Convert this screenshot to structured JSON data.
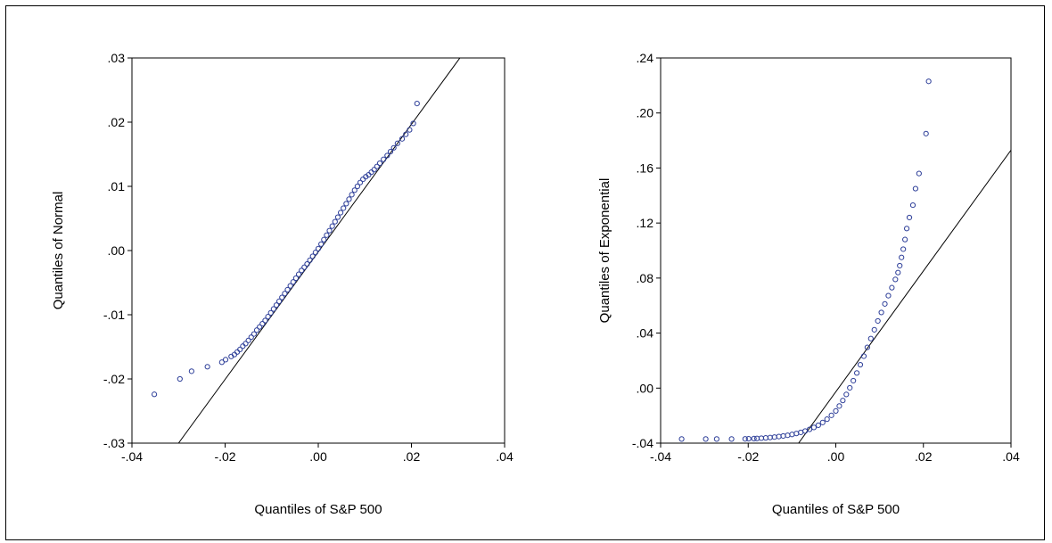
{
  "colors": {
    "points": "#2e3f99",
    "line": "#000000",
    "frame": "#000000"
  },
  "chart_data": [
    {
      "type": "scatter",
      "title": "",
      "xlabel": "Quantiles of S&P 500",
      "ylabel": "Quantiles of Normal",
      "xlim": [
        -0.04,
        0.04
      ],
      "ylim": [
        -0.03,
        0.03
      ],
      "x_ticks": [
        -0.04,
        -0.02,
        0.0,
        0.02,
        0.04
      ],
      "x_tick_labels": [
        "-.04",
        "-.02",
        ".00",
        ".02",
        ".04"
      ],
      "y_ticks": [
        -0.03,
        -0.02,
        -0.01,
        0.0,
        0.01,
        0.02,
        0.03
      ],
      "y_tick_labels": [
        "-.03",
        "-.02",
        "-.01",
        ".00",
        ".01",
        ".02",
        ".03"
      ],
      "reference_line": {
        "x": [
          -0.03,
          0.0305
        ],
        "y": [
          -0.03,
          0.0301
        ]
      },
      "points": {
        "x": [
          -0.0352,
          -0.0297,
          -0.0272,
          -0.0238,
          -0.0207,
          -0.0199,
          -0.0187,
          -0.018,
          -0.0174,
          -0.0168,
          -0.0162,
          -0.0156,
          -0.015,
          -0.0144,
          -0.0138,
          -0.0132,
          -0.0126,
          -0.012,
          -0.0114,
          -0.0108,
          -0.0102,
          -0.0096,
          -0.009,
          -0.0084,
          -0.0078,
          -0.0072,
          -0.0066,
          -0.006,
          -0.0054,
          -0.0048,
          -0.0042,
          -0.0036,
          -0.003,
          -0.0024,
          -0.0018,
          -0.0012,
          -0.0006,
          0.0,
          0.0006,
          0.0012,
          0.0018,
          0.0024,
          0.003,
          0.0036,
          0.0042,
          0.0048,
          0.0054,
          0.006,
          0.0066,
          0.0072,
          0.0078,
          0.0084,
          0.009,
          0.0096,
          0.0102,
          0.0108,
          0.0114,
          0.012,
          0.0126,
          0.0132,
          0.014,
          0.0148,
          0.0155,
          0.0162,
          0.017,
          0.018,
          0.0188,
          0.0196,
          0.0204,
          0.0212
        ],
        "y": [
          -0.0224,
          -0.02,
          -0.0188,
          -0.0181,
          -0.0174,
          -0.017,
          -0.0165,
          -0.0162,
          -0.0158,
          -0.0154,
          -0.0149,
          -0.0145,
          -0.014,
          -0.0135,
          -0.013,
          -0.0124,
          -0.0119,
          -0.0114,
          -0.0109,
          -0.0103,
          -0.0097,
          -0.0091,
          -0.0085,
          -0.0079,
          -0.0073,
          -0.0067,
          -0.0061,
          -0.0055,
          -0.0049,
          -0.0043,
          -0.0037,
          -0.0031,
          -0.0026,
          -0.0021,
          -0.0015,
          -0.0009,
          -0.0003,
          0.0003,
          0.001,
          0.0017,
          0.0024,
          0.0031,
          0.0038,
          0.0045,
          0.0052,
          0.0059,
          0.0066,
          0.0073,
          0.008,
          0.0087,
          0.0094,
          0.01,
          0.0106,
          0.0111,
          0.0115,
          0.0118,
          0.0122,
          0.0126,
          0.0131,
          0.0136,
          0.0142,
          0.0148,
          0.0154,
          0.016,
          0.0167,
          0.0174,
          0.0181,
          0.0188,
          0.0198,
          0.0229
        ]
      }
    },
    {
      "type": "scatter",
      "title": "",
      "xlabel": "Quantiles of S&P 500",
      "ylabel": "Quantiles of Exponential",
      "xlim": [
        -0.04,
        0.04
      ],
      "ylim": [
        -0.04,
        0.24
      ],
      "x_ticks": [
        -0.04,
        -0.02,
        0.0,
        0.02,
        0.04
      ],
      "x_tick_labels": [
        "-.04",
        "-.02",
        ".00",
        ".02",
        ".04"
      ],
      "y_ticks": [
        -0.04,
        0.0,
        0.04,
        0.08,
        0.12,
        0.16,
        0.2,
        0.24
      ],
      "y_tick_labels": [
        "-.04",
        ".00",
        ".04",
        ".08",
        ".12",
        ".16",
        ".20",
        ".24"
      ],
      "reference_line": {
        "x": [
          -0.0085,
          0.04
        ],
        "y": [
          -0.04,
          0.173
        ]
      },
      "points": {
        "x": [
          -0.0352,
          -0.0297,
          -0.0272,
          -0.0238,
          -0.0207,
          -0.0199,
          -0.0187,
          -0.018,
          -0.017,
          -0.016,
          -0.015,
          -0.014,
          -0.013,
          -0.012,
          -0.011,
          -0.01,
          -0.009,
          -0.008,
          -0.007,
          -0.006,
          -0.005,
          -0.004,
          -0.003,
          -0.002,
          -0.001,
          0.0,
          0.0008,
          0.0016,
          0.0024,
          0.0032,
          0.004,
          0.0048,
          0.0056,
          0.0064,
          0.0072,
          0.008,
          0.0088,
          0.0096,
          0.0104,
          0.0112,
          0.012,
          0.0128,
          0.0136,
          0.0142,
          0.0146,
          0.015,
          0.0154,
          0.0158,
          0.0162,
          0.0168,
          0.0176,
          0.0182,
          0.019,
          0.0206,
          0.0212
        ],
        "y": [
          -0.037,
          -0.037,
          -0.037,
          -0.037,
          -0.0369,
          -0.0368,
          -0.0367,
          -0.0366,
          -0.0364,
          -0.0362,
          -0.0359,
          -0.0356,
          -0.0352,
          -0.0348,
          -0.0343,
          -0.0337,
          -0.033,
          -0.0322,
          -0.0312,
          -0.03,
          -0.0286,
          -0.027,
          -0.025,
          -0.0226,
          -0.0198,
          -0.0166,
          -0.013,
          -0.009,
          -0.0046,
          0.0002,
          0.0054,
          0.011,
          0.017,
          0.0232,
          0.0296,
          0.036,
          0.0424,
          0.0488,
          0.055,
          0.0612,
          0.0672,
          0.073,
          0.079,
          0.084,
          0.089,
          0.095,
          0.101,
          0.108,
          0.116,
          0.124,
          0.133,
          0.145,
          0.156,
          0.185,
          0.223
        ]
      }
    }
  ]
}
